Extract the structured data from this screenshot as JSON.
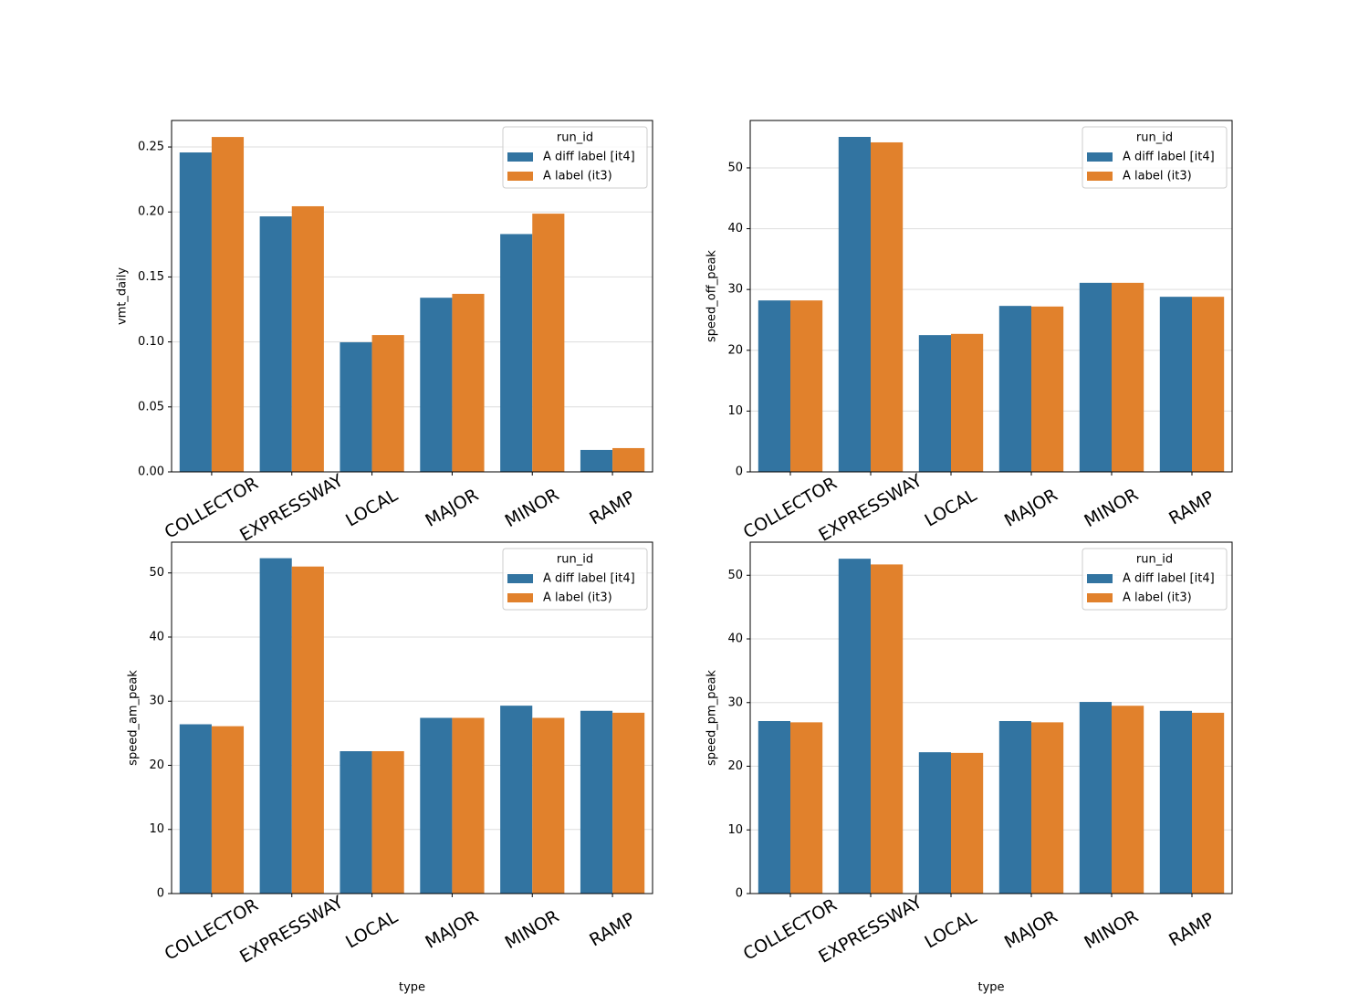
{
  "chart_data": [
    {
      "type": "bar",
      "ylabel": "vmt_daily",
      "categories": [
        "COLLECTOR",
        "EXPRESSWAY",
        "LOCAL",
        "MAJOR",
        "MINOR",
        "RAMP"
      ],
      "series": [
        {
          "name": "A diff label [it4]",
          "color": "#3274a1",
          "values": [
            0.2458,
            0.1966,
            0.0997,
            0.134,
            0.183,
            0.0169
          ]
        },
        {
          "name": "A label (it3)",
          "color": "#e1812c",
          "values": [
            0.2577,
            0.2044,
            0.1053,
            0.137,
            0.1987,
            0.0183
          ]
        }
      ],
      "ylim": [
        0,
        0.2704
      ],
      "yticks": [
        {
          "value": 0,
          "label": "0.00"
        },
        {
          "value": 0.05,
          "label": "0.05"
        },
        {
          "value": 0.1,
          "label": "0.10"
        },
        {
          "value": 0.15,
          "label": "0.15"
        },
        {
          "value": 0.2,
          "label": "0.20"
        },
        {
          "value": 0.25,
          "label": "0.25"
        }
      ],
      "grid": true,
      "legend_title": "run_id",
      "legend": "upper right"
    },
    {
      "type": "bar",
      "ylabel": "speed_off_peak",
      "categories": [
        "COLLECTOR",
        "EXPRESSWAY",
        "LOCAL",
        "MAJOR",
        "MINOR",
        "RAMP"
      ],
      "series": [
        {
          "name": "A diff label [it4]",
          "color": "#3274a1",
          "values": [
            28.2,
            55.1,
            22.5,
            27.3,
            31.1,
            28.8
          ]
        },
        {
          "name": "A label (it3)",
          "color": "#e1812c",
          "values": [
            28.2,
            54.2,
            22.7,
            27.2,
            31.1,
            28.8
          ]
        }
      ],
      "ylim": [
        0,
        57.8
      ],
      "yticks": [
        0,
        10,
        20,
        30,
        40,
        50
      ],
      "grid": true,
      "legend_title": "run_id",
      "legend": "upper right"
    },
    {
      "type": "bar",
      "ylabel": "speed_am_peak",
      "xlabel": "type",
      "categories": [
        "COLLECTOR",
        "EXPRESSWAY",
        "LOCAL",
        "MAJOR",
        "MINOR",
        "RAMP"
      ],
      "series": [
        {
          "name": "A diff label [it4]",
          "color": "#3274a1",
          "values": [
            26.4,
            52.3,
            22.2,
            27.4,
            29.3,
            28.5
          ]
        },
        {
          "name": "A label (it3)",
          "color": "#e1812c",
          "values": [
            26.1,
            51.0,
            22.2,
            27.4,
            27.4,
            28.2
          ]
        }
      ],
      "ylim": [
        0,
        54.8
      ],
      "yticks": [
        0,
        10,
        20,
        30,
        40,
        50
      ],
      "grid": true,
      "legend_title": "run_id",
      "legend": "upper right"
    },
    {
      "type": "bar",
      "ylabel": "speed_pm_peak",
      "xlabel": "type",
      "categories": [
        "COLLECTOR",
        "EXPRESSWAY",
        "LOCAL",
        "MAJOR",
        "MINOR",
        "RAMP"
      ],
      "series": [
        {
          "name": "A diff label [it4]",
          "color": "#3274a1",
          "values": [
            27.1,
            52.6,
            22.2,
            27.1,
            30.1,
            28.7
          ]
        },
        {
          "name": "A label (it3)",
          "color": "#e1812c",
          "values": [
            26.9,
            51.7,
            22.1,
            26.9,
            29.5,
            28.4
          ]
        }
      ],
      "ylim": [
        0,
        55.2
      ],
      "yticks": [
        0,
        10,
        20,
        30,
        40,
        50
      ],
      "grid": true,
      "legend_title": "run_id",
      "legend": "upper right"
    }
  ]
}
